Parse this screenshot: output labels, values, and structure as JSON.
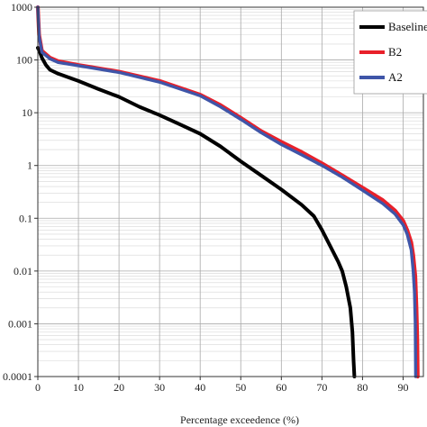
{
  "chart_data": {
    "type": "line",
    "title": "",
    "xlabel": "Percentage exceedence (%)",
    "ylabel": "",
    "xscale": "linear",
    "yscale": "log",
    "xlim": [
      0,
      95
    ],
    "ylim": [
      0.0001,
      1000
    ],
    "x_ticks": [
      0,
      10,
      20,
      30,
      40,
      50,
      60,
      70,
      80,
      90
    ],
    "x_tick_labels": [
      "0",
      "10",
      "20",
      "30",
      "40",
      "50",
      "60",
      "70",
      "80",
      "90"
    ],
    "y_ticks": [
      1000,
      100,
      10,
      1,
      0.1,
      0.01,
      0.001,
      0.0001
    ],
    "y_tick_labels": [
      "1000",
      "100",
      "10",
      "1",
      "0.1",
      "0.01",
      "0.001",
      "0.0001"
    ],
    "grid": true,
    "legend_position": "top-right",
    "series": [
      {
        "name": "Baseline",
        "color": "#000000",
        "points": [
          [
            0,
            170
          ],
          [
            0.5,
            140
          ],
          [
            1,
            110
          ],
          [
            2,
            80
          ],
          [
            3,
            65
          ],
          [
            5,
            55
          ],
          [
            10,
            40
          ],
          [
            15,
            28
          ],
          [
            20,
            20
          ],
          [
            25,
            13
          ],
          [
            30,
            9
          ],
          [
            35,
            6
          ],
          [
            40,
            4
          ],
          [
            45,
            2.3
          ],
          [
            50,
            1.2
          ],
          [
            55,
            0.65
          ],
          [
            60,
            0.35
          ],
          [
            65,
            0.18
          ],
          [
            68,
            0.11
          ],
          [
            70,
            0.06
          ],
          [
            72,
            0.03
          ],
          [
            74,
            0.015
          ],
          [
            75,
            0.01
          ],
          [
            76,
            0.005
          ],
          [
            77,
            0.002
          ],
          [
            77.5,
            0.0007
          ],
          [
            77.8,
            0.0002
          ],
          [
            78,
            0.0001
          ]
        ]
      },
      {
        "name": "B2",
        "color": "#e8202a",
        "points": [
          [
            0,
            1000
          ],
          [
            0.3,
            300
          ],
          [
            1,
            150
          ],
          [
            3,
            110
          ],
          [
            5,
            95
          ],
          [
            10,
            80
          ],
          [
            20,
            60
          ],
          [
            30,
            40
          ],
          [
            40,
            22
          ],
          [
            45,
            14
          ],
          [
            50,
            8
          ],
          [
            55,
            4.5
          ],
          [
            60,
            2.8
          ],
          [
            65,
            1.8
          ],
          [
            70,
            1.1
          ],
          [
            75,
            0.65
          ],
          [
            80,
            0.38
          ],
          [
            85,
            0.22
          ],
          [
            88,
            0.14
          ],
          [
            90,
            0.09
          ],
          [
            91,
            0.06
          ],
          [
            92,
            0.035
          ],
          [
            92.5,
            0.02
          ],
          [
            93,
            0.008
          ],
          [
            93.3,
            0.002
          ],
          [
            93.5,
            0.0005
          ],
          [
            93.6,
            0.0001
          ]
        ]
      },
      {
        "name": "A2",
        "color": "#3f55a8",
        "points": [
          [
            0,
            1000
          ],
          [
            0.3,
            280
          ],
          [
            1,
            140
          ],
          [
            3,
            105
          ],
          [
            5,
            90
          ],
          [
            10,
            78
          ],
          [
            20,
            58
          ],
          [
            30,
            38
          ],
          [
            40,
            21
          ],
          [
            45,
            13
          ],
          [
            50,
            7.5
          ],
          [
            55,
            4.2
          ],
          [
            60,
            2.5
          ],
          [
            65,
            1.6
          ],
          [
            70,
            1.0
          ],
          [
            75,
            0.6
          ],
          [
            80,
            0.34
          ],
          [
            85,
            0.19
          ],
          [
            88,
            0.12
          ],
          [
            90,
            0.075
          ],
          [
            91,
            0.05
          ],
          [
            92,
            0.025
          ],
          [
            92.5,
            0.01
          ],
          [
            92.8,
            0.004
          ],
          [
            93,
            0.001
          ],
          [
            93.1,
            0.0001
          ]
        ]
      }
    ]
  }
}
